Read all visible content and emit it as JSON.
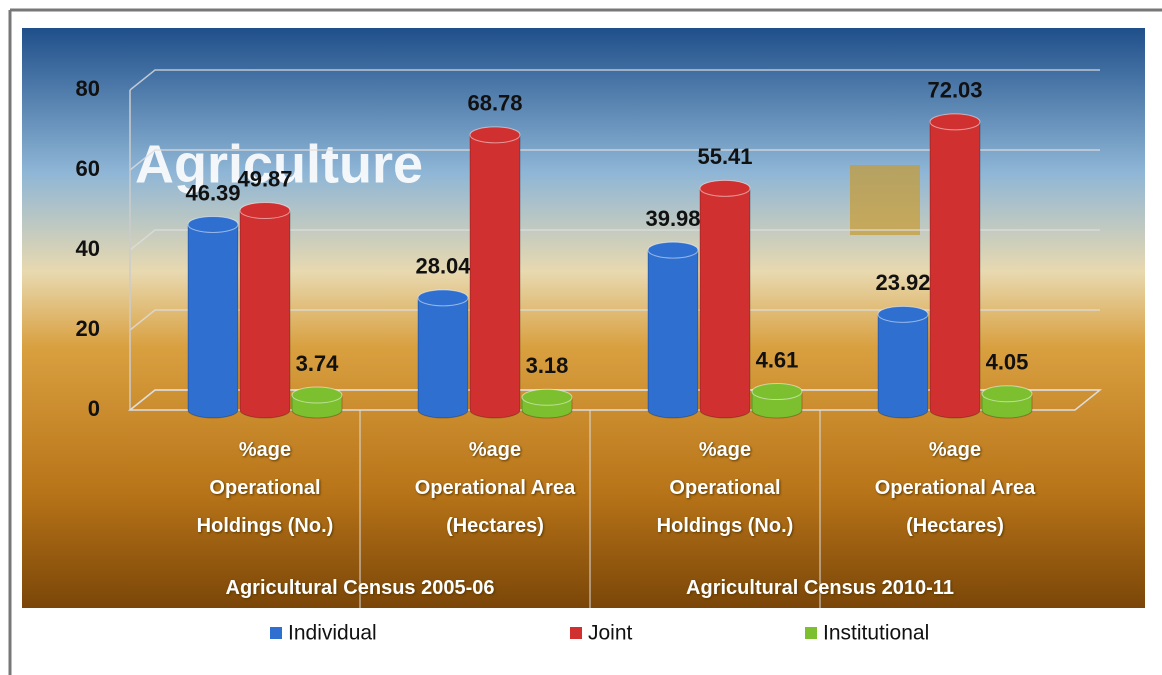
{
  "chart_data": {
    "type": "bar",
    "background_text": "Agriculture",
    "categories": [
      [
        "%age",
        "Operational",
        "Holdings (No.)"
      ],
      [
        "%age",
        "Operational Area",
        "(Hectares)"
      ],
      [
        "%age",
        "Operational",
        "Holdings (No.)"
      ],
      [
        "%age",
        "Operational Area",
        "(Hectares)"
      ]
    ],
    "groups": [
      "Agricultural Census 2005-06",
      "Agricultural Census 2010-11"
    ],
    "series": [
      {
        "name": "Individual",
        "color": "#2e6fd0",
        "values": [
          46.39,
          28.04,
          39.98,
          23.92
        ]
      },
      {
        "name": "Joint",
        "color": "#d03030",
        "values": [
          49.87,
          68.78,
          55.41,
          72.03
        ]
      },
      {
        "name": "Institutional",
        "color": "#7cc030",
        "values": [
          3.74,
          3.18,
          4.61,
          4.05
        ]
      }
    ],
    "ylim": [
      0,
      80
    ],
    "yticks": [
      0,
      20,
      40,
      60,
      80
    ],
    "grid": true
  }
}
